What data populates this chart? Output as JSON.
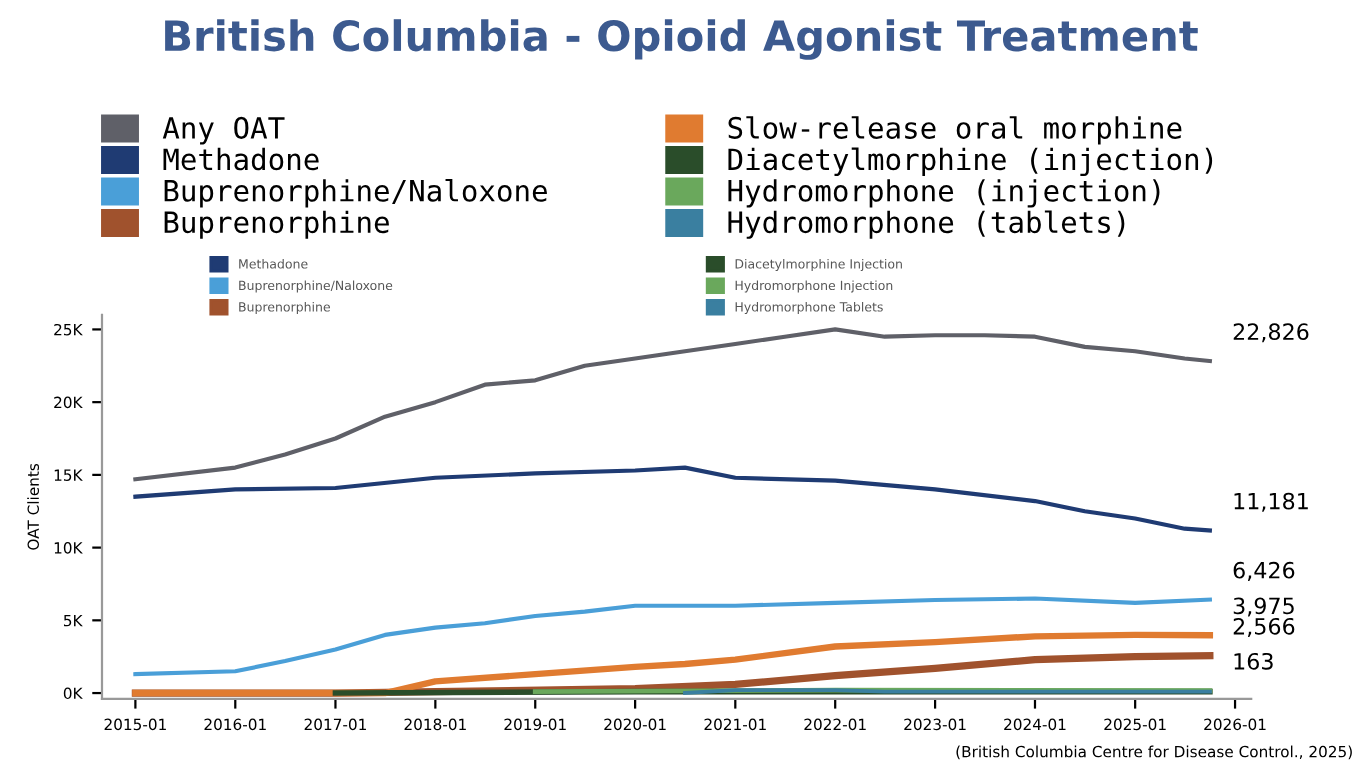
{
  "chart_data": {
    "type": "line",
    "title": "British Columbia - Opioid Agonist Treatment",
    "ylabel": "OAT Clients",
    "xlim": [
      "2014-09",
      "2026-03"
    ],
    "xticks": [
      {
        "value": "2015-01",
        "label": "2015-01"
      },
      {
        "value": "2016-01",
        "label": "2016-01"
      },
      {
        "value": "2017-01",
        "label": "2017-01"
      },
      {
        "value": "2018-01",
        "label": "2018-01"
      },
      {
        "value": "2019-01",
        "label": "2019-01"
      },
      {
        "value": "2020-01",
        "label": "2020-01"
      },
      {
        "value": "2021-01",
        "label": "2021-01"
      },
      {
        "value": "2022-01",
        "label": "2022-01"
      },
      {
        "value": "2023-01",
        "label": "2023-01"
      },
      {
        "value": "2024-01",
        "label": "2024-01"
      },
      {
        "value": "2025-01",
        "label": "2025-01"
      },
      {
        "value": "2026-01",
        "label": "2026-01"
      }
    ],
    "ylim": [
      -400,
      26000
    ],
    "yticks": [
      {
        "value": 0,
        "label": "0K"
      },
      {
        "value": 5000,
        "label": "5K"
      },
      {
        "value": 10000,
        "label": "10K"
      },
      {
        "value": 15000,
        "label": "15K"
      },
      {
        "value": 20000,
        "label": "20K"
      },
      {
        "value": 25000,
        "label": "25K"
      }
    ],
    "grid": false,
    "legend": "top left",
    "marker": "none",
    "line_style": "solid",
    "series": [
      {
        "name": "Any OAT",
        "color": "#5f6068",
        "x": [
          "2015-01",
          "2016-01",
          "2016-07",
          "2017-01",
          "2017-07",
          "2018-01",
          "2018-07",
          "2019-01",
          "2019-07",
          "2020-01",
          "2020-07",
          "2021-01",
          "2021-07",
          "2022-01",
          "2022-07",
          "2023-01",
          "2023-07",
          "2024-01",
          "2024-07",
          "2025-01",
          "2025-07",
          "2025-10"
        ],
        "values": [
          14700,
          15500,
          16400,
          17500,
          19000,
          20000,
          21200,
          21500,
          22500,
          23000,
          23500,
          24000,
          24500,
          25000,
          24500,
          24600,
          24600,
          24500,
          23800,
          23500,
          23000,
          22826
        ],
        "value_labels": [
          null,
          null,
          null,
          null,
          null,
          null,
          null,
          null,
          null,
          null,
          null,
          null,
          null,
          null,
          null,
          null,
          null,
          null,
          null,
          null,
          null,
          "22,826"
        ]
      },
      {
        "name": "Methadone",
        "color": "#1f3b73",
        "x": [
          "2015-01",
          "2016-01",
          "2017-01",
          "2018-01",
          "2019-01",
          "2020-01",
          "2020-07",
          "2021-01",
          "2022-01",
          "2023-01",
          "2024-01",
          "2024-07",
          "2025-01",
          "2025-07",
          "2025-10"
        ],
        "values": [
          13500,
          14000,
          14100,
          14800,
          15100,
          15300,
          15500,
          14800,
          14600,
          14000,
          13200,
          12500,
          12000,
          11300,
          11181
        ],
        "value_labels": [
          null,
          null,
          null,
          null,
          null,
          null,
          null,
          null,
          null,
          null,
          null,
          null,
          null,
          null,
          "11,181"
        ]
      },
      {
        "name": "Buprenorphine/Naloxone",
        "color": "#4a9fd8",
        "x": [
          "2015-01",
          "2016-01",
          "2016-07",
          "2017-01",
          "2017-07",
          "2018-01",
          "2018-07",
          "2019-01",
          "2019-07",
          "2020-01",
          "2021-01",
          "2022-01",
          "2023-01",
          "2024-01",
          "2025-01",
          "2025-10"
        ],
        "values": [
          1300,
          1500,
          2200,
          3000,
          4000,
          4500,
          4800,
          5300,
          5600,
          6000,
          6000,
          6200,
          6400,
          6500,
          6200,
          6426
        ],
        "value_labels": [
          null,
          null,
          null,
          null,
          null,
          null,
          null,
          null,
          null,
          null,
          null,
          null,
          null,
          null,
          null,
          "6,426"
        ]
      },
      {
        "name": "Buprenorphine",
        "color": "#a0522d",
        "x": [
          "2015-01",
          "2017-01",
          "2018-01",
          "2020-01",
          "2021-01",
          "2022-01",
          "2023-01",
          "2024-01",
          "2025-01",
          "2025-10"
        ],
        "values": [
          0,
          0,
          100,
          300,
          600,
          1200,
          1700,
          2300,
          2500,
          2566
        ],
        "value_labels": [
          null,
          null,
          null,
          null,
          null,
          null,
          null,
          null,
          null,
          "2,566"
        ]
      },
      {
        "name": "Slow-release oral morphine",
        "color": "#e07b30",
        "x": [
          "2015-01",
          "2017-07",
          "2018-01",
          "2019-01",
          "2020-01",
          "2020-07",
          "2021-01",
          "2022-01",
          "2023-01",
          "2024-01",
          "2025-01",
          "2025-10"
        ],
        "values": [
          0,
          0,
          800,
          1300,
          1800,
          2000,
          2300,
          3200,
          3500,
          3900,
          4000,
          3975
        ],
        "value_labels": [
          null,
          null,
          null,
          null,
          null,
          null,
          null,
          null,
          null,
          null,
          null,
          "3,975"
        ]
      },
      {
        "name": "Diacetylmorphine (injection)",
        "color": "#2a4d2a",
        "x": [
          "2017-01",
          "2020-01",
          "2025-10"
        ],
        "values": [
          0,
          100,
          100
        ]
      },
      {
        "name": "Hydromorphone (injection)",
        "color": "#6aa85c",
        "x": [
          "2019-01",
          "2022-01",
          "2025-10"
        ],
        "values": [
          100,
          200,
          163
        ],
        "value_labels": [
          null,
          null,
          "163"
        ]
      },
      {
        "name": "Hydromorphone (tablets)",
        "color": "#3a7fa0",
        "x": [
          "2020-07",
          "2021-01",
          "2022-01",
          "2022-07",
          "2025-10"
        ],
        "values": [
          0,
          200,
          200,
          100,
          100
        ]
      }
    ],
    "annotations": [
      "Methadone",
      "Buprenorphine/Naloxone",
      "Buprenorphine",
      "Diacetylmorphine Injection",
      "Hydromorphone Injection",
      "Hydromorphone Tablets",
      "(British Columbia Centre for Disease Control., 2025)"
    ]
  }
}
